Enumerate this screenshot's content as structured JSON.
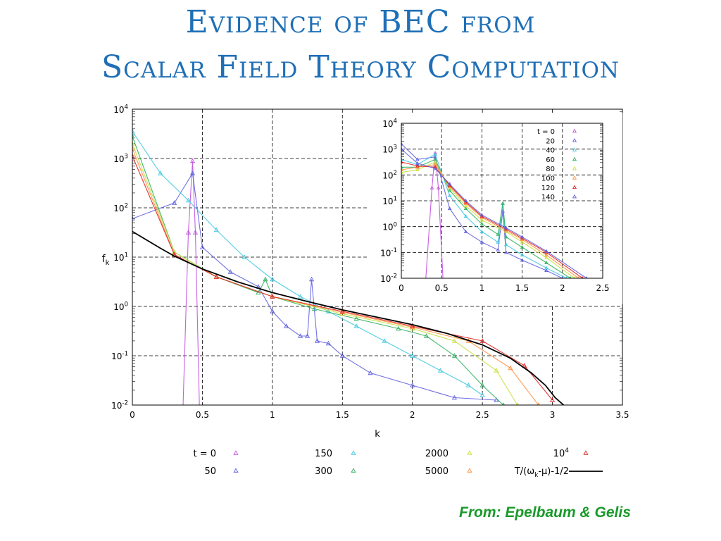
{
  "slide": {
    "title_line1": "Evidence of BEC from",
    "title_line2": "Scalar Field Theory Computation",
    "credit": "From: Epelbaum & Gelis"
  },
  "colors": {
    "title": "#1f6fb6",
    "credit": "#1a9a2a",
    "fit": "#000000"
  },
  "chart_data": {
    "type": "line",
    "title": "",
    "xlabel": "k",
    "ylabel": "f_k",
    "ylabel_main": "f",
    "ylabel_sub": "k",
    "xlim": [
      0,
      3.5
    ],
    "ylim_log10": [
      -2,
      4
    ],
    "yscale": "log",
    "grid": true,
    "x_ticks": [
      "0",
      "0.5",
      "1",
      "1.5",
      "2",
      "2.5",
      "3",
      "3.5"
    ],
    "x_tick_values": [
      0,
      0.5,
      1,
      1.5,
      2,
      2.5,
      3,
      3.5
    ],
    "y_tick_exponents": [
      -2,
      -1,
      0,
      1,
      2,
      3,
      4
    ],
    "y_tick_base": "10",
    "y_tick_labels": [
      "-2",
      "-1",
      "0",
      "1",
      "2",
      "3",
      "4"
    ],
    "legend": {
      "placement": "bottom",
      "entries": [
        {
          "label": "t = 0",
          "color": "#c050e0"
        },
        {
          "label": "50",
          "color": "#6060e0"
        },
        {
          "label": "150",
          "color": "#40c8e0"
        },
        {
          "label": "300",
          "color": "#30b060"
        },
        {
          "label": "2000",
          "color": "#c8e040"
        },
        {
          "label": "5000",
          "color": "#ff9040"
        },
        {
          "label": "10",
          "sup": "4",
          "color": "#e02020"
        },
        {
          "label": "T/(ω",
          "sub": "k",
          "suffix": "-μ)-1/2",
          "color": "#000000",
          "is_line": true
        }
      ]
    },
    "series": [
      {
        "name": "t = 0",
        "color": "#c050e0",
        "x": [
          0.36,
          0.4,
          0.43,
          0.45,
          0.48
        ],
        "log10_y": [
          -2.2,
          1.5,
          2.95,
          1.5,
          -2.2
        ]
      },
      {
        "name": "50",
        "color": "#6060e0",
        "x": [
          0,
          0.3,
          0.43,
          0.5,
          0.7,
          0.9,
          1.0,
          1.1,
          1.2,
          1.25,
          1.28,
          1.32,
          1.4,
          1.5,
          1.7,
          2.0,
          2.3,
          2.6
        ],
        "log10_y": [
          1.78,
          2.1,
          2.7,
          1.2,
          0.7,
          0.4,
          -0.1,
          -0.4,
          -0.6,
          -0.6,
          0.55,
          -0.7,
          -0.75,
          -1.0,
          -1.35,
          -1.6,
          -1.85,
          -1.9
        ]
      },
      {
        "name": "150",
        "color": "#40c8e0",
        "x": [
          0,
          0.2,
          0.4,
          0.6,
          0.8,
          1.0,
          1.2,
          1.4,
          1.6,
          1.8,
          2.0,
          2.2,
          2.4,
          2.5
        ],
        "log10_y": [
          3.55,
          2.7,
          2.15,
          1.55,
          1.0,
          0.55,
          0.2,
          -0.1,
          -0.4,
          -0.7,
          -1.0,
          -1.3,
          -1.6,
          -1.8
        ]
      },
      {
        "name": "300",
        "color": "#30b060",
        "x": [
          0,
          0.3,
          0.6,
          0.9,
          0.95,
          1.0,
          1.3,
          1.6,
          1.9,
          2.1,
          2.3,
          2.5,
          2.65
        ],
        "log10_y": [
          3.45,
          1.1,
          0.6,
          0.28,
          0.55,
          0.2,
          -0.05,
          -0.25,
          -0.45,
          -0.6,
          -1.0,
          -1.6,
          -2.0
        ]
      },
      {
        "name": "2000",
        "color": "#c8e040",
        "x": [
          0,
          0.3,
          0.6,
          1.0,
          1.5,
          2.0,
          2.3,
          2.6,
          2.75
        ],
        "log10_y": [
          3.3,
          1.1,
          0.6,
          0.2,
          -0.15,
          -0.45,
          -0.7,
          -1.3,
          -2.0
        ]
      },
      {
        "name": "5000",
        "color": "#ff9040",
        "x": [
          0,
          0.3,
          0.6,
          1.0,
          1.5,
          2.0,
          2.4,
          2.7,
          2.9
        ],
        "log10_y": [
          3.2,
          1.05,
          0.6,
          0.2,
          -0.12,
          -0.42,
          -0.7,
          -1.25,
          -2.0
        ]
      },
      {
        "name": "10^4",
        "color": "#e02020",
        "x": [
          0,
          0.3,
          0.6,
          1.0,
          1.5,
          2.0,
          2.5,
          2.8,
          3.0
        ],
        "log10_y": [
          3.05,
          1.05,
          0.6,
          0.2,
          -0.1,
          -0.4,
          -0.7,
          -1.2,
          -1.9
        ]
      }
    ],
    "fit": {
      "name": "T/(ω_k-μ)-1/2",
      "color": "#000000",
      "x": [
        0,
        0.1,
        0.2,
        0.3,
        0.5,
        0.75,
        1.0,
        1.25,
        1.5,
        1.75,
        2.0,
        2.25,
        2.5,
        2.7,
        2.85,
        2.95,
        3.02,
        3.08
      ],
      "log10_y": [
        1.52,
        1.35,
        1.18,
        1.02,
        0.76,
        0.5,
        0.28,
        0.1,
        -0.07,
        -0.22,
        -0.37,
        -0.55,
        -0.78,
        -1.05,
        -1.35,
        -1.6,
        -1.85,
        -2.0
      ]
    },
    "inset": {
      "xlim": [
        0,
        2.5
      ],
      "ylim_log10": [
        -2,
        4
      ],
      "x_ticks": [
        "0",
        "0.5",
        "1",
        "1.5",
        "2",
        "2.5"
      ],
      "x_tick_values": [
        0,
        0.5,
        1,
        1.5,
        2,
        2.5
      ],
      "y_tick_exponents": [
        -2,
        -1,
        0,
        1,
        2,
        3,
        4
      ],
      "legend": [
        {
          "label": "t = 0",
          "color": "#c050e0"
        },
        {
          "label": "20",
          "color": "#6060e0"
        },
        {
          "label": "40",
          "color": "#40c8e0"
        },
        {
          "label": "60",
          "color": "#30b060"
        },
        {
          "label": "80",
          "color": "#c8e040"
        },
        {
          "label": "100",
          "color": "#ff9040"
        },
        {
          "label": "120",
          "color": "#e02020"
        },
        {
          "label": "140",
          "color": "#6060e0"
        }
      ],
      "series": [
        {
          "name": "t = 0",
          "color": "#c050e0",
          "x": [
            0.3,
            0.38,
            0.42,
            0.46,
            0.52
          ],
          "log10_y": [
            -2.2,
            1.5,
            2.85,
            1.5,
            -2.2
          ]
        },
        {
          "name": "20",
          "color": "#6060e0",
          "x": [
            0,
            0.2,
            0.42,
            0.6,
            0.8,
            1.0,
            1.2,
            1.26,
            1.3,
            1.5,
            1.8,
            2.0
          ],
          "log10_y": [
            3.2,
            2.6,
            2.7,
            0.7,
            -0.2,
            -0.6,
            -0.9,
            0.6,
            -1.0,
            -1.3,
            -1.7,
            -2.0
          ]
        },
        {
          "name": "40",
          "color": "#40c8e0",
          "x": [
            0,
            0.2,
            0.42,
            0.6,
            0.8,
            1.0,
            1.2,
            1.26,
            1.3,
            1.5,
            1.8,
            2.05
          ],
          "log10_y": [
            2.6,
            2.4,
            2.8,
            1.2,
            0.4,
            -0.2,
            -0.6,
            0.9,
            -0.7,
            -1.1,
            -1.6,
            -2.0
          ]
        },
        {
          "name": "60",
          "color": "#30b060",
          "x": [
            0,
            0.2,
            0.42,
            0.6,
            0.8,
            1.0,
            1.2,
            1.26,
            1.3,
            1.5,
            1.8,
            2.1
          ],
          "log10_y": [
            2.3,
            2.3,
            2.6,
            1.4,
            0.7,
            0.1,
            -0.3,
            0.9,
            -0.4,
            -0.8,
            -1.4,
            -2.0
          ]
        },
        {
          "name": "80",
          "color": "#c8e040",
          "x": [
            0,
            0.2,
            0.42,
            0.6,
            0.8,
            1.0,
            1.3,
            1.5,
            1.8,
            2.15
          ],
          "log10_y": [
            2.1,
            2.2,
            2.5,
            1.5,
            0.8,
            0.25,
            -0.2,
            -0.6,
            -1.2,
            -2.0
          ]
        },
        {
          "name": "100",
          "color": "#ff9040",
          "x": [
            0,
            0.2,
            0.42,
            0.6,
            0.8,
            1.0,
            1.3,
            1.5,
            1.8,
            2.2
          ],
          "log10_y": [
            2.2,
            2.3,
            2.4,
            1.55,
            0.9,
            0.35,
            -0.15,
            -0.5,
            -1.1,
            -2.0
          ]
        },
        {
          "name": "120",
          "color": "#e02020",
          "x": [
            0,
            0.2,
            0.42,
            0.6,
            0.8,
            1.0,
            1.3,
            1.5,
            1.8,
            2.25
          ],
          "log10_y": [
            2.5,
            2.35,
            2.3,
            1.6,
            0.95,
            0.4,
            -0.1,
            -0.45,
            -1.0,
            -2.0
          ]
        },
        {
          "name": "140",
          "color": "#6060e0",
          "x": [
            0,
            0.2,
            0.42,
            0.6,
            0.8,
            1.0,
            1.3,
            1.5,
            1.8,
            2.3
          ],
          "log10_y": [
            3.0,
            2.45,
            2.25,
            1.65,
            1.0,
            0.45,
            -0.05,
            -0.4,
            -0.95,
            -2.0
          ]
        }
      ]
    }
  }
}
